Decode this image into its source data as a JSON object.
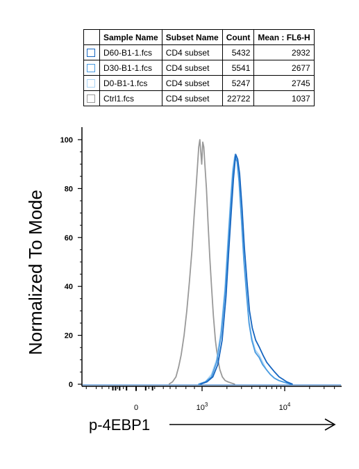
{
  "legend_table": {
    "headers": [
      "Sample Name",
      "Subset Name",
      "Count",
      "Mean : FL6-H"
    ],
    "rows": [
      {
        "sample": "D60-B1-1.fcs",
        "subset": "CD4 subset",
        "count": "5432",
        "mean": "2932",
        "color": "#1565C0"
      },
      {
        "sample": "D30-B1-1.fcs",
        "subset": "CD4 subset",
        "count": "5541",
        "mean": "2677",
        "color": "#4A9BE0"
      },
      {
        "sample": "D0-B1-1.fcs",
        "subset": "CD4 subset",
        "count": "5247",
        "mean": "2745",
        "color": "#A9D3F5"
      },
      {
        "sample": "Ctrl1.fcs",
        "subset": "CD4 subset",
        "count": "22722",
        "mean": "1037",
        "color": "#999999"
      }
    ]
  },
  "chart_data": {
    "type": "line",
    "xlabel": "p-4EBP1",
    "ylabel": "Normalized To Mode",
    "ylim": [
      0,
      100
    ],
    "yticks": [
      0,
      20,
      40,
      60,
      80,
      100
    ],
    "xticks": [
      {
        "value": 0,
        "label": "0"
      },
      {
        "value": 1000,
        "label": "10",
        "sup": "3"
      },
      {
        "value": 10000,
        "label": "10",
        "sup": "4"
      }
    ],
    "x_scale": "biexponential",
    "series": [
      {
        "name": "Ctrl1.fcs",
        "color": "#999999",
        "x": [
          280,
          340,
          400,
          450,
          500,
          560,
          620,
          680,
          740,
          790,
          840,
          880,
          910,
          940,
          960,
          990,
          1020,
          1050,
          1080,
          1130,
          1180,
          1240,
          1300,
          1370,
          1450,
          1540,
          1640,
          1760,
          1900,
          2050,
          2250,
          2500
        ],
        "y": [
          0,
          1,
          3,
          7,
          12,
          20,
          30,
          42,
          55,
          68,
          80,
          90,
          97,
          100,
          96,
          90,
          99,
          97,
          90,
          80,
          66,
          52,
          40,
          28,
          18,
          11,
          6,
          3,
          1.5,
          1,
          0.5,
          0
        ]
      },
      {
        "name": "D0-B1-1.fcs",
        "color": "#A9D3F5",
        "x": [
          900,
          1100,
          1300,
          1500,
          1700,
          1900,
          2050,
          2200,
          2350,
          2500,
          2650,
          2800,
          3000,
          3200,
          3450,
          3700,
          4000,
          4400,
          4900,
          5400,
          6000,
          6700,
          7500,
          8500,
          9500,
          10500,
          12000
        ],
        "y": [
          0,
          1,
          4,
          10,
          22,
          40,
          58,
          74,
          88,
          94,
          92,
          84,
          68,
          52,
          38,
          26,
          19,
          14,
          12,
          9,
          6,
          4,
          2.5,
          1.5,
          1,
          0.5,
          0
        ]
      },
      {
        "name": "D30-B1-1.fcs",
        "color": "#4A9BE0",
        "x": [
          900,
          1100,
          1300,
          1500,
          1700,
          1900,
          2050,
          2200,
          2350,
          2500,
          2650,
          2800,
          3000,
          3200,
          3450,
          3700,
          4000,
          4400,
          4900,
          5400,
          6000,
          6700,
          7500,
          8500,
          9500,
          10500,
          12000
        ],
        "y": [
          0,
          1,
          3,
          9,
          20,
          38,
          56,
          72,
          86,
          93,
          91,
          83,
          67,
          51,
          37,
          25,
          18,
          13,
          11,
          8,
          6,
          4,
          2.5,
          1.5,
          1,
          0.5,
          0
        ]
      },
      {
        "name": "D60-B1-1.fcs",
        "color": "#1565C0",
        "x": [
          950,
          1150,
          1350,
          1550,
          1750,
          1950,
          2100,
          2250,
          2400,
          2550,
          2700,
          2850,
          3050,
          3250,
          3500,
          3750,
          4050,
          4450,
          4950,
          5450,
          6050,
          6750,
          7550,
          8550,
          9550,
          10550,
          12500
        ],
        "y": [
          0,
          1,
          3,
          8,
          18,
          36,
          54,
          70,
          84,
          94,
          92,
          86,
          72,
          56,
          42,
          30,
          23,
          18,
          15,
          12,
          9,
          7,
          5,
          3,
          2,
          1,
          0
        ]
      }
    ]
  }
}
